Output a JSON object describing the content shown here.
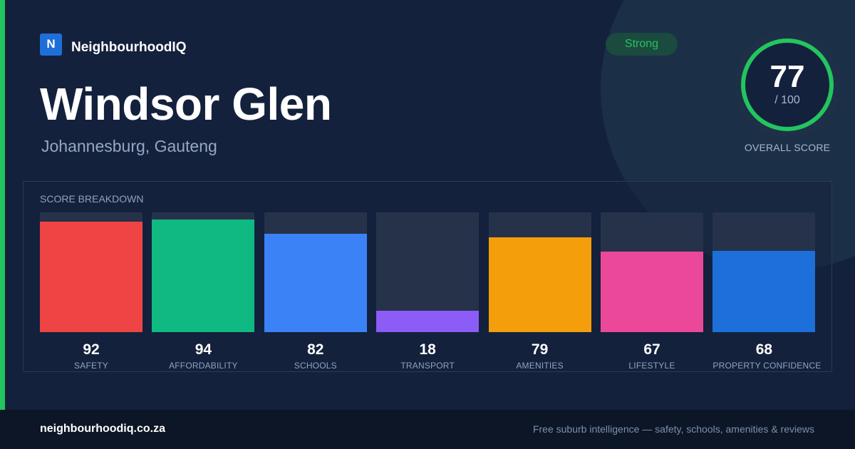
{
  "brand": {
    "logo_letter": "N",
    "name": "NeighbourhoodIQ"
  },
  "suburb": {
    "name": "Windsor Glen",
    "location": "Johannesburg, Gauteng"
  },
  "status": {
    "label": "Strong",
    "color": "#22c55e"
  },
  "overall": {
    "score": "77",
    "out_of": "/ 100",
    "caption": "OVERALL SCORE",
    "score_value": 77,
    "max": 100,
    "ring_color": "#22c55e"
  },
  "breakdown": {
    "title": "SCORE BREAKDOWN"
  },
  "chart_data": {
    "type": "bar",
    "title": "SCORE BREAKDOWN",
    "categories": [
      "SAFETY",
      "AFFORDABILITY",
      "SCHOOLS",
      "TRANSPORT",
      "AMENITIES",
      "LIFESTYLE",
      "PROPERTY CONFIDENCE"
    ],
    "values": [
      92,
      94,
      82,
      18,
      79,
      67,
      68
    ],
    "colors": [
      "#ef4444",
      "#10b981",
      "#3b82f6",
      "#8b5cf6",
      "#f59e0b",
      "#ec4899",
      "#1d6fd9"
    ],
    "ylim": [
      0,
      100
    ]
  },
  "footer": {
    "url": "neighbourhoodiq.co.za",
    "tagline": "Free suburb intelligence — safety, schools, amenities & reviews"
  }
}
